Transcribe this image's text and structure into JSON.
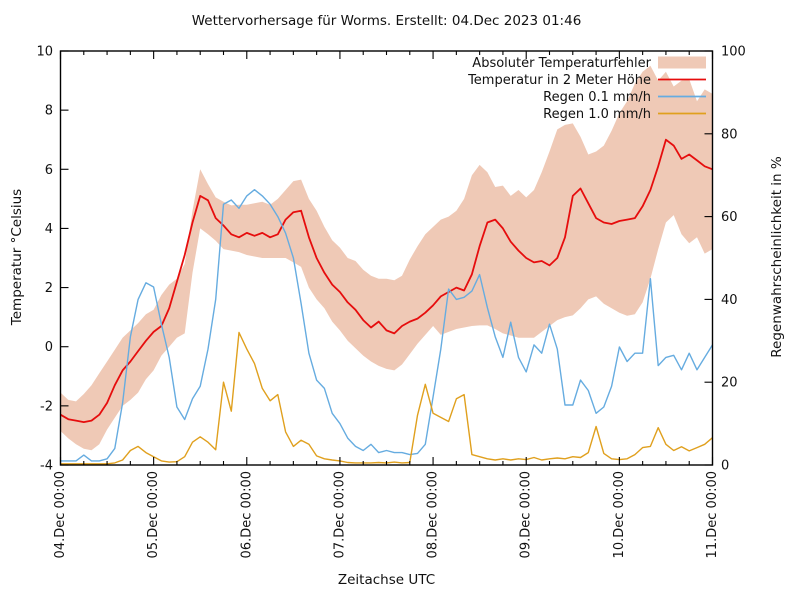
{
  "title": "Wettervorhersage für Worms. Erstellt: 04.Dec 2023 01:46",
  "axes": {
    "left_label": "Temperatur °Celsius",
    "right_label": "Regenwahrscheinlichkeit in %",
    "x_label": "Zeitachse UTC",
    "left_ticks": [
      -4,
      -2,
      0,
      2,
      4,
      6,
      8,
      10
    ],
    "right_ticks": [
      0,
      20,
      40,
      60,
      80,
      100
    ],
    "x_tick_labels": [
      "04.Dec 00:00",
      "05.Dec 00:00",
      "06.Dec 00:00",
      "07.Dec 00:00",
      "08.Dec 00:00",
      "09.Dec 00:00",
      "10.Dec 00:00",
      "11.Dec 00:00"
    ]
  },
  "legend": [
    {
      "label": "Absoluter Temperaturfehler",
      "type": "band",
      "color": "#efc9b6"
    },
    {
      "label": "Temperatur in 2 Meter Höhe",
      "type": "line",
      "color": "#e60d0d"
    },
    {
      "label": "Regen 0.1 mm/h",
      "type": "line",
      "color": "#66ace0"
    },
    {
      "label": "Regen 1.0 mm/h",
      "type": "line",
      "color": "#e0a01e"
    }
  ],
  "colors": {
    "band": "#efc9b6",
    "temperature": "#e60d0d",
    "rain01": "#66ace0",
    "rain10": "#e0a01e",
    "frame": "#000000",
    "text": "#111111"
  },
  "chart_data": {
    "type": "line",
    "title": "Wettervorhersage für Worms. Erstellt: 04.Dec 2023 01:46",
    "xlabel": "Zeitachse UTC",
    "ylabel_left": "Temperatur °Celsius",
    "ylabel_right": "Regenwahrscheinlichkeit in %",
    "ylim_left": [
      -4,
      10
    ],
    "ylim_right": [
      0,
      100
    ],
    "grid": false,
    "legend_position": "top-right-inside",
    "x_unit": "hours since 04.Dec 2023 00:00 UTC",
    "x_step_hours": 2,
    "x_range_hours": [
      0,
      168
    ],
    "x_major_tick_hours": 24,
    "x_minor_tick_hours": 6,
    "series": [
      {
        "name": "Absoluter Temperaturfehler (band, °C)",
        "axis": "left",
        "role": "band",
        "low": [
          -2.85,
          -3.1,
          -3.3,
          -3.45,
          -3.5,
          -3.3,
          -2.8,
          -2.4,
          -2.0,
          -1.8,
          -1.55,
          -1.1,
          -0.8,
          -0.3,
          0.0,
          0.3,
          0.45,
          2.5,
          4.0,
          3.8,
          3.58,
          3.3,
          3.25,
          3.2,
          3.1,
          3.05,
          3.0,
          3.0,
          3.0,
          3.0,
          2.85,
          2.7,
          2.0,
          1.6,
          1.3,
          0.85,
          0.55,
          0.2,
          -0.05,
          -0.3,
          -0.5,
          -0.65,
          -0.75,
          -0.8,
          -0.6,
          -0.25,
          0.1,
          0.4,
          0.7,
          0.4,
          0.5,
          0.6,
          0.65,
          0.7,
          0.72,
          0.72,
          0.6,
          0.45,
          0.38,
          0.3,
          0.3,
          0.3,
          0.5,
          0.7,
          0.9,
          1.0,
          1.06,
          1.3,
          1.6,
          1.7,
          1.45,
          1.3,
          1.15,
          1.05,
          1.1,
          1.5,
          2.3,
          3.3,
          4.2,
          4.45,
          3.8,
          3.5,
          3.7,
          3.15,
          3.3
        ],
        "high": [
          -1.55,
          -1.8,
          -1.85,
          -1.6,
          -1.3,
          -0.9,
          -0.5,
          -0.1,
          0.3,
          0.55,
          0.8,
          1.1,
          1.25,
          1.75,
          2.1,
          2.3,
          2.8,
          4.6,
          6.0,
          5.5,
          5.05,
          4.9,
          4.78,
          4.8,
          4.8,
          4.85,
          4.9,
          4.8,
          5.0,
          5.3,
          5.6,
          5.65,
          5.0,
          4.6,
          4.05,
          3.6,
          3.35,
          3.0,
          2.9,
          2.6,
          2.4,
          2.3,
          2.3,
          2.25,
          2.4,
          2.95,
          3.4,
          3.8,
          4.05,
          4.3,
          4.4,
          4.6,
          5.0,
          5.8,
          6.15,
          5.9,
          5.4,
          5.45,
          5.1,
          5.3,
          5.05,
          5.3,
          5.9,
          6.6,
          7.35,
          7.5,
          7.55,
          7.1,
          6.5,
          6.6,
          6.8,
          7.3,
          7.9,
          8.3,
          8.9,
          9.3,
          9.5,
          9.0,
          9.3,
          8.8,
          9.0,
          9.05,
          8.3,
          8.7,
          8.55
        ]
      },
      {
        "name": "Temperatur in 2 Meter Höhe (°C)",
        "axis": "left",
        "role": "line",
        "values": [
          -2.3,
          -2.45,
          -2.5,
          -2.55,
          -2.5,
          -2.3,
          -1.9,
          -1.3,
          -0.8,
          -0.5,
          -0.15,
          0.2,
          0.5,
          0.7,
          1.3,
          2.2,
          3.1,
          4.2,
          5.1,
          4.95,
          4.35,
          4.1,
          3.8,
          3.7,
          3.85,
          3.75,
          3.85,
          3.7,
          3.8,
          4.3,
          4.55,
          4.6,
          3.7,
          3.0,
          2.5,
          2.1,
          1.85,
          1.5,
          1.25,
          0.9,
          0.65,
          0.85,
          0.55,
          0.45,
          0.7,
          0.85,
          0.95,
          1.15,
          1.4,
          1.7,
          1.85,
          2.0,
          1.9,
          2.45,
          3.4,
          4.2,
          4.3,
          4.0,
          3.55,
          3.25,
          3.0,
          2.85,
          2.9,
          2.75,
          3.0,
          3.7,
          5.1,
          5.35,
          4.85,
          4.35,
          4.2,
          4.15,
          4.25,
          4.3,
          4.35,
          4.75,
          5.3,
          6.1,
          7.0,
          6.8,
          6.35,
          6.5,
          6.3,
          6.1,
          6.0
        ]
      },
      {
        "name": "Regen 0.1 mm/h (%)",
        "axis": "right",
        "role": "line",
        "values": [
          1,
          1,
          1,
          2.4,
          1,
          1,
          1.5,
          4,
          15,
          31,
          40,
          44,
          43,
          34,
          26,
          14,
          11,
          16,
          19,
          28,
          40,
          63,
          64,
          62,
          65,
          66.5,
          65,
          63,
          60,
          56,
          50,
          39,
          27,
          20.5,
          18.5,
          12.5,
          10,
          6.5,
          4.5,
          3.5,
          5,
          3,
          3.5,
          3,
          3,
          2.5,
          2.8,
          5,
          16.5,
          28,
          42.5,
          40,
          40.5,
          42,
          46,
          38,
          31,
          26,
          34.5,
          26,
          22.5,
          29,
          27,
          34,
          28,
          14.5,
          14.5,
          20.5,
          18,
          12.5,
          14,
          19,
          28.5,
          25,
          27,
          27,
          45,
          24,
          26,
          26.5,
          23,
          27,
          23,
          26,
          29
        ]
      },
      {
        "name": "Regen 1.0 mm/h (%)",
        "axis": "right",
        "role": "line",
        "values": [
          0.3,
          0.3,
          0.3,
          0.3,
          0.3,
          0.3,
          0.3,
          0.5,
          1.2,
          3.5,
          4.5,
          3,
          2,
          1,
          0.7,
          0.8,
          2,
          5.5,
          6.8,
          5.5,
          3.7,
          20,
          13,
          32,
          28,
          24.5,
          18.5,
          15.5,
          17,
          8,
          4.5,
          6,
          5,
          2.2,
          1.5,
          1.2,
          1,
          0.6,
          0.5,
          0.5,
          0.5,
          0.6,
          0.5,
          0.7,
          0.5,
          0.6,
          12,
          19.5,
          12.5,
          11.5,
          10.5,
          16,
          17,
          2.5,
          2,
          1.5,
          1.2,
          1.5,
          1.2,
          1.5,
          1.3,
          1.8,
          1.2,
          1.5,
          1.7,
          1.5,
          2,
          1.8,
          3,
          9.3,
          2.8,
          1.5,
          1.3,
          1.5,
          2.5,
          4.2,
          4.5,
          9,
          5,
          3.5,
          4.4,
          3.4,
          4.2,
          5,
          6.6
        ]
      }
    ]
  }
}
